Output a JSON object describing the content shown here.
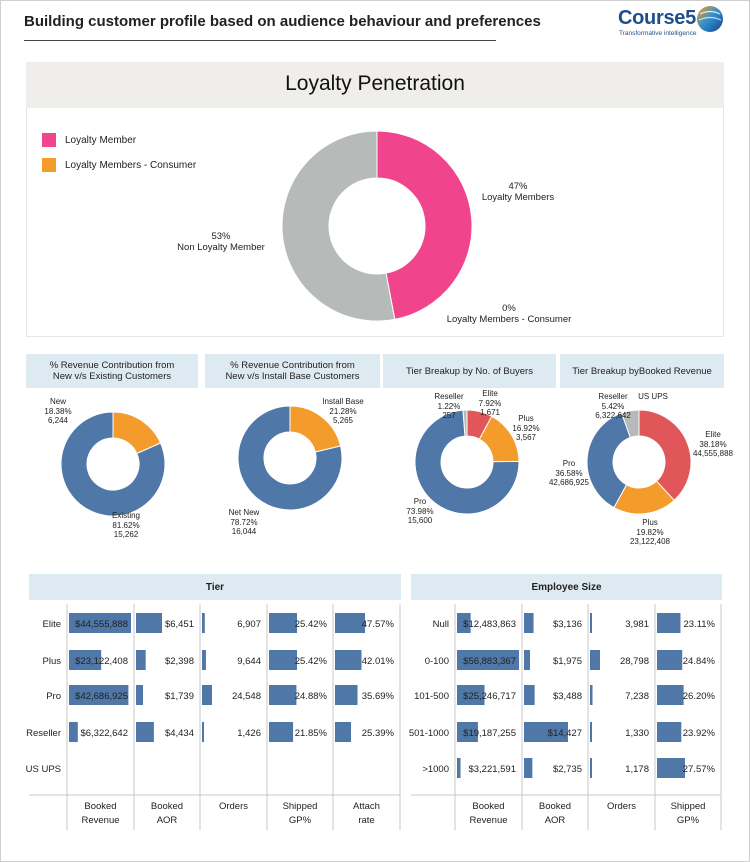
{
  "header": {
    "title": "Building customer profile based on audience behaviour and preferences",
    "logo_name": "Course5",
    "logo_tagline": "Transformative intelligence"
  },
  "loyalty": {
    "title": "Loyalty Penetration",
    "legend": [
      {
        "label": "Loyalty Member",
        "color": "#f0458c"
      },
      {
        "label": "Loyalty Members - Consumer",
        "color": "#f39b2b"
      }
    ],
    "labels": {
      "member_pct": "47%",
      "member_name": "Loyalty Members",
      "non_pct": "53%",
      "non_name": "Non Loyalty Member",
      "consumer_pct": "0%",
      "consumer_name": "Loyalty Members - Consumer"
    }
  },
  "mini_charts": {
    "rev_new_existing": {
      "title_line1": "% Revenue Contribution from",
      "title_line2": "New v/s Existing Customers",
      "new_l1": "New",
      "new_l2": "18.38%",
      "new_l3": "6,244",
      "ex_l1": "Existing",
      "ex_l2": "81.62%",
      "ex_l3": "15,262"
    },
    "rev_new_install": {
      "title_line1": "% Revenue Contribution from",
      "title_line2": "New v/s Install Base Customers",
      "ib_l1": "Install Base",
      "ib_l2": "21.28%",
      "ib_l3": "5,265",
      "nn_l1": "Net New",
      "nn_l2": "78.72%",
      "nn_l3": "16,044"
    },
    "tier_buyers": {
      "title": "Tier Breakup by No. of Buyers",
      "res_l1": "Reseller",
      "res_l2": "1.22%",
      "res_l3": "257",
      "eli_l1": "Elite",
      "eli_l2": "7.92%",
      "eli_l3": "1,671",
      "plu_l1": "Plus",
      "plu_l2": "16.92%",
      "plu_l3": "3,567",
      "pro_l1": "Pro",
      "pro_l2": "73.98%",
      "pro_l3": "15,600"
    },
    "tier_revenue": {
      "title": "Tier Breakup byBooked Revenue",
      "res_l1": "Reseller",
      "res_l2": "5.42%",
      "res_l3": "6,322,642",
      "ups_l1": "US UPS",
      "eli_l1": "Elite",
      "eli_l2": "38.18%",
      "eli_l3": "44,555,888",
      "pro_l1": "Pro",
      "pro_l2": "36.58%",
      "pro_l3": "42,686,925",
      "plu_l1": "Plus",
      "plu_l2": "19.82%",
      "plu_l3": "23,122,408"
    }
  },
  "chart_data": [
    {
      "type": "pie",
      "title": "Loyalty Penetration",
      "categories": [
        "Loyalty Members",
        "Non Loyalty Member",
        "Loyalty Members - Consumer"
      ],
      "values": [
        47,
        53,
        0
      ],
      "colors": [
        "#f0458c",
        "#b6bbba",
        "#f39b2b"
      ]
    },
    {
      "type": "pie",
      "title": "% Revenue Contribution from New v/s Existing Customers",
      "categories": [
        "New",
        "Existing"
      ],
      "values": [
        18.38,
        81.62
      ],
      "counts": [
        6244,
        15262
      ],
      "colors": [
        "#f39b2b",
        "#4f77a8"
      ]
    },
    {
      "type": "pie",
      "title": "% Revenue Contribution from New v/s Install Base Customers",
      "categories": [
        "Install Base",
        "Net New"
      ],
      "values": [
        21.28,
        78.72
      ],
      "counts": [
        5265,
        16044
      ],
      "colors": [
        "#f39b2b",
        "#4f77a8"
      ]
    },
    {
      "type": "pie",
      "title": "Tier Breakup by No. of Buyers",
      "categories": [
        "Elite",
        "Plus",
        "Pro",
        "Reseller"
      ],
      "values": [
        7.92,
        16.92,
        73.98,
        1.22
      ],
      "counts": [
        1671,
        3567,
        15600,
        257
      ],
      "colors": [
        "#e15759",
        "#f39b2b",
        "#4f77a8",
        "#b6bbba"
      ]
    },
    {
      "type": "pie",
      "title": "Tier Breakup byBooked Revenue",
      "categories": [
        "Elite",
        "Plus",
        "Pro",
        "Reseller",
        "US UPS"
      ],
      "values": [
        38.18,
        19.82,
        36.58,
        5.42,
        0
      ],
      "counts": [
        44555888,
        23122408,
        42686925,
        6322642,
        0
      ],
      "colors": [
        "#e15759",
        "#f39b2b",
        "#4f77a8",
        "#b6bbba",
        "#7f7f7f"
      ]
    },
    {
      "type": "table",
      "title": "Tier",
      "rows": [
        "Elite",
        "Plus",
        "Pro",
        "Reseller",
        "US UPS"
      ],
      "columns": [
        "Booked Revenue",
        "Booked AOR",
        "Orders",
        "Shipped GP%",
        "Attach rate"
      ],
      "text": [
        [
          "$44,555,888",
          "$6,451",
          "6,907",
          "25.42%",
          "47.57%"
        ],
        [
          "$23,122,408",
          "$2,398",
          "9,644",
          "25.42%",
          "42.01%"
        ],
        [
          "$42,686,925",
          "$1,739",
          "24,548",
          "24.88%",
          "35.69%"
        ],
        [
          "$6,322,642",
          "$4,434",
          "1,426",
          "21.85%",
          "25.39%"
        ],
        [
          "",
          "",
          "",
          "",
          ""
        ]
      ],
      "values": [
        [
          44555888,
          6451,
          6907,
          25.42,
          47.57
        ],
        [
          23122408,
          2398,
          9644,
          25.42,
          42.01
        ],
        [
          42686925,
          1739,
          24548,
          24.88,
          35.69
        ],
        [
          6322642,
          4434,
          1426,
          21.85,
          25.39
        ],
        [
          0,
          0,
          0,
          0,
          0
        ]
      ],
      "col_max": [
        44555888,
        6451,
        24548,
        25.42,
        47.57
      ]
    },
    {
      "type": "table",
      "title": "Employee Size",
      "rows": [
        "Null",
        "0-100",
        "101-500",
        "501-1000",
        ">1000"
      ],
      "columns": [
        "Booked Revenue",
        "Booked AOR",
        "Orders",
        "Shipped GP%"
      ],
      "text": [
        [
          "$12,483,863",
          "$3,136",
          "3,981",
          "23.11%"
        ],
        [
          "$56,883,367",
          "$1,975",
          "28,798",
          "24.84%"
        ],
        [
          "$25,246,717",
          "$3,488",
          "7,238",
          "26.20%"
        ],
        [
          "$19,187,255",
          "$14,427",
          "1,330",
          "23.92%"
        ],
        [
          "$3,221,591",
          "$2,735",
          "1,178",
          "27.57%"
        ]
      ],
      "values": [
        [
          12483863,
          3136,
          3981,
          23.11
        ],
        [
          56883367,
          1975,
          28798,
          24.84
        ],
        [
          25246717,
          3488,
          7238,
          26.2
        ],
        [
          19187255,
          14427,
          1330,
          23.92
        ],
        [
          3221591,
          2735,
          1178,
          27.57
        ]
      ],
      "col_max": [
        56883367,
        14427,
        28798,
        27.57
      ]
    }
  ],
  "tables": {
    "tier_title": "Tier",
    "emp_title": "Employee Size"
  },
  "colors": {
    "bar": "#4f77a8",
    "header_bg": "#deeaf1"
  }
}
